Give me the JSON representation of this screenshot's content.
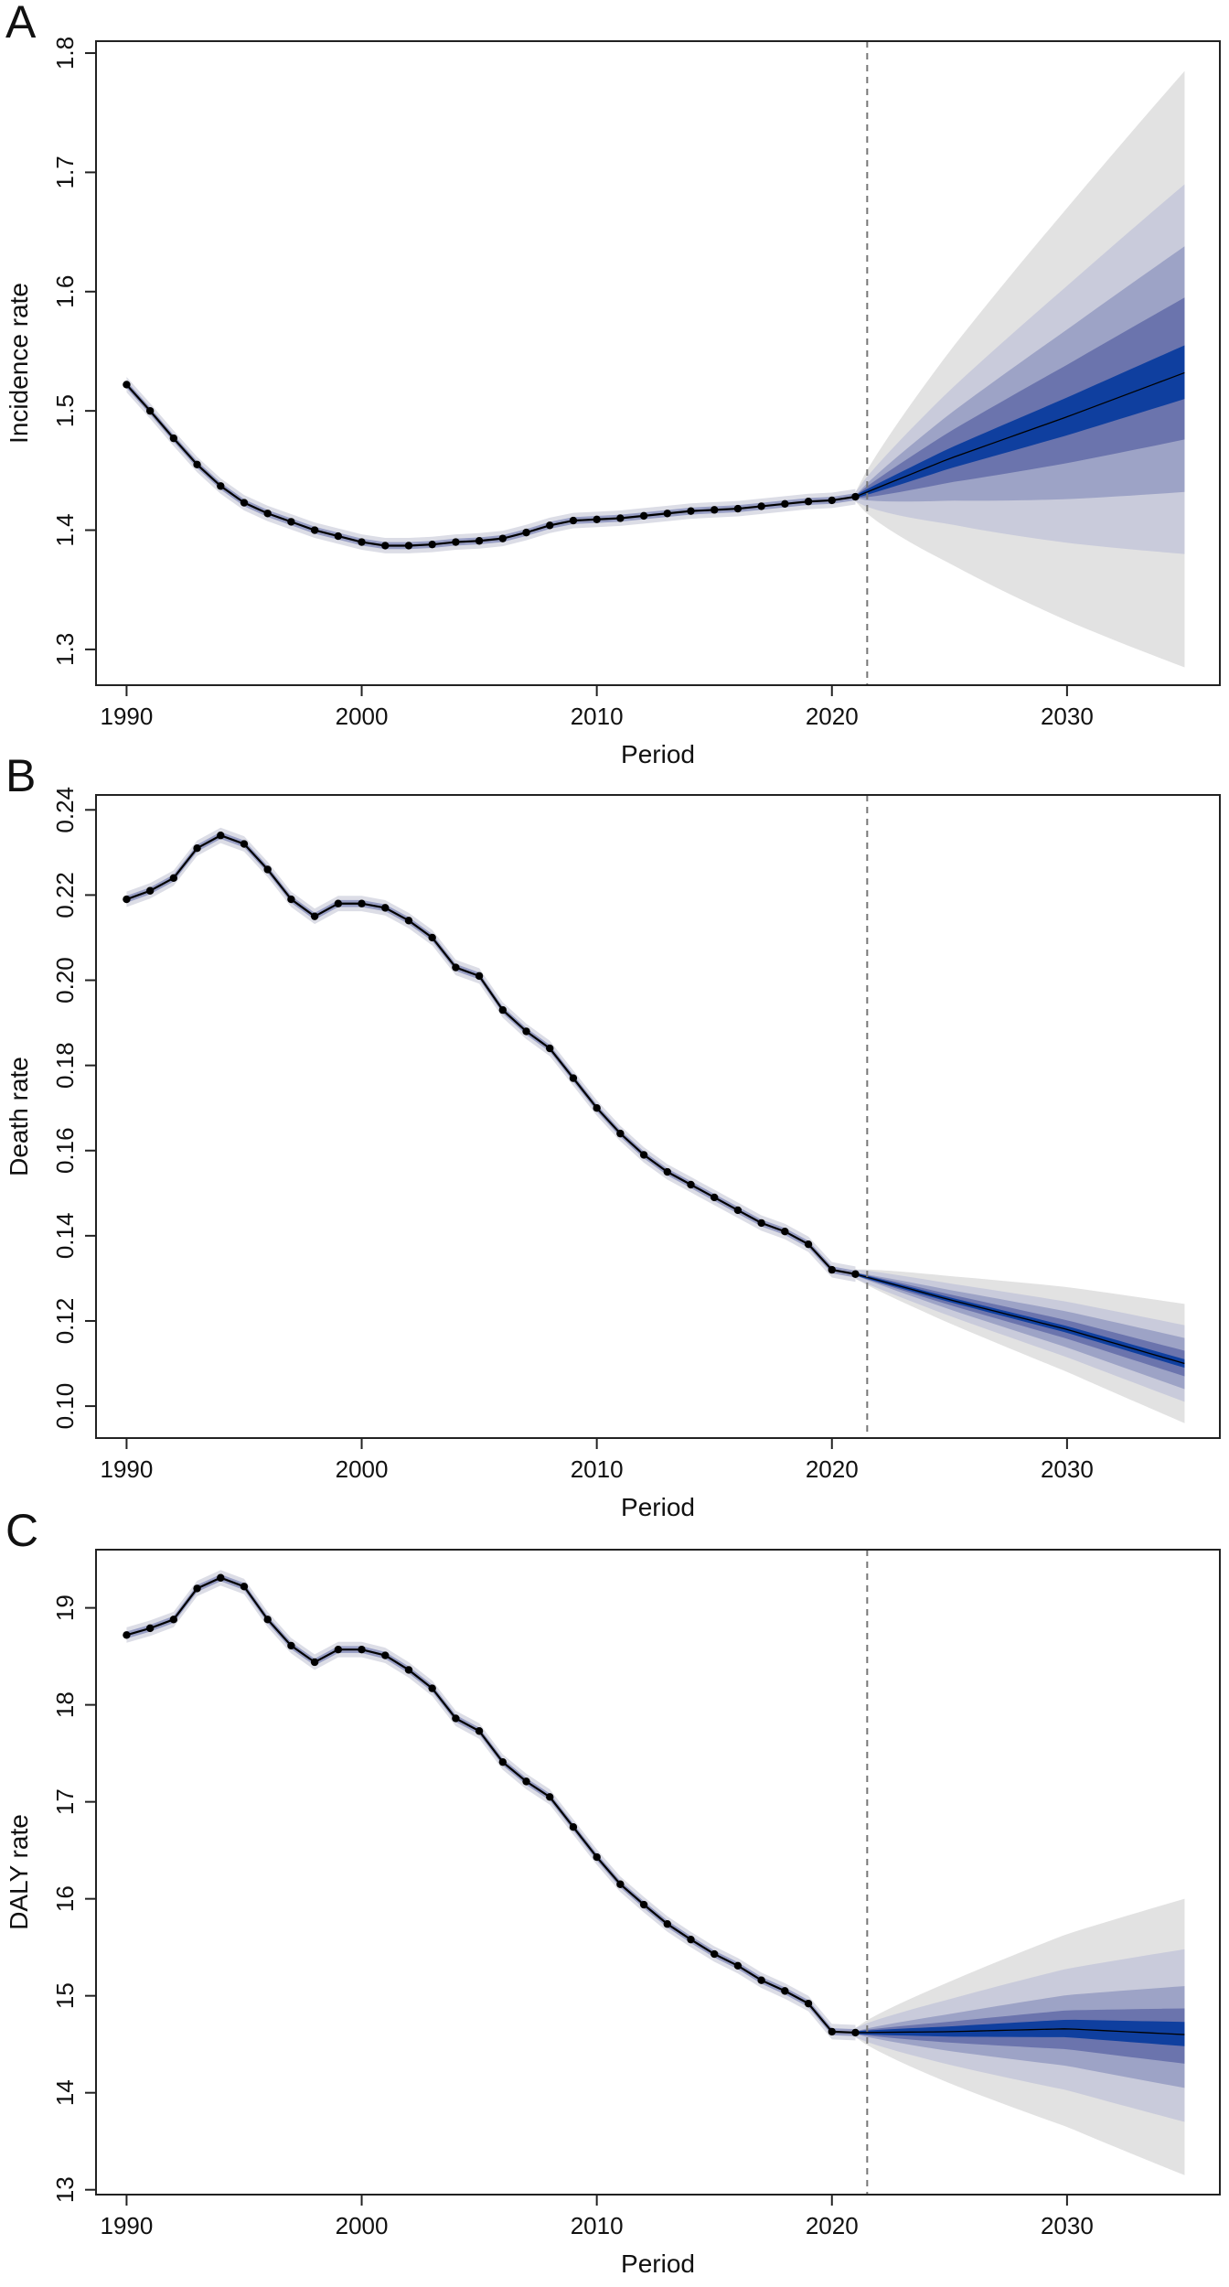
{
  "chart_data": [
    {
      "panel_label": "A",
      "type": "line",
      "xlabel": "Period",
      "ylabel": "Incidence rate",
      "xlim": [
        1988.7,
        2036.5
      ],
      "ylim": [
        1.27,
        1.81
      ],
      "xticks": [
        1990,
        2000,
        2010,
        2020,
        2030
      ],
      "yticks": [
        "1.3",
        "1.4",
        "1.5",
        "1.6",
        "1.7",
        "1.8"
      ],
      "forecast_start": 2021.5,
      "observed": {
        "x": [
          1990,
          1991,
          1992,
          1993,
          1994,
          1995,
          1996,
          1997,
          1998,
          1999,
          2000,
          2001,
          2002,
          2003,
          2004,
          2005,
          2006,
          2007,
          2008,
          2009,
          2010,
          2011,
          2012,
          2013,
          2014,
          2015,
          2016,
          2017,
          2018,
          2019,
          2020,
          2021
        ],
        "y": [
          1.522,
          1.5,
          1.477,
          1.455,
          1.437,
          1.423,
          1.414,
          1.407,
          1.4,
          1.395,
          1.39,
          1.387,
          1.387,
          1.388,
          1.39,
          1.391,
          1.393,
          1.398,
          1.404,
          1.408,
          1.409,
          1.41,
          1.412,
          1.414,
          1.416,
          1.417,
          1.418,
          1.42,
          1.422,
          1.424,
          1.425,
          1.428
        ]
      },
      "forecast_median": {
        "x": [
          2021,
          2025,
          2030,
          2035
        ],
        "y": [
          1.428,
          1.46,
          1.495,
          1.532
        ]
      },
      "forecast_bands_2035": [
        [
          1.285,
          1.785
        ],
        [
          1.38,
          1.69
        ],
        [
          1.432,
          1.638
        ],
        [
          1.476,
          1.595
        ],
        [
          1.51,
          1.555
        ]
      ]
    },
    {
      "panel_label": "B",
      "type": "line",
      "xlabel": "Period",
      "ylabel": "Death rate",
      "xlim": [
        1988.7,
        2036.5
      ],
      "ylim": [
        0.0925,
        0.2435
      ],
      "xticks": [
        1990,
        2000,
        2010,
        2020,
        2030
      ],
      "yticks": [
        "0.10",
        "0.12",
        "0.14",
        "0.16",
        "0.18",
        "0.20",
        "0.22",
        "0.24"
      ],
      "forecast_start": 2021.5,
      "observed": {
        "x": [
          1990,
          1991,
          1992,
          1993,
          1994,
          1995,
          1996,
          1997,
          1998,
          1999,
          2000,
          2001,
          2002,
          2003,
          2004,
          2005,
          2006,
          2007,
          2008,
          2009,
          2010,
          2011,
          2012,
          2013,
          2014,
          2015,
          2016,
          2017,
          2018,
          2019,
          2020,
          2021
        ],
        "y": [
          0.219,
          0.221,
          0.224,
          0.231,
          0.234,
          0.232,
          0.226,
          0.219,
          0.215,
          0.218,
          0.218,
          0.217,
          0.214,
          0.21,
          0.203,
          0.201,
          0.193,
          0.188,
          0.184,
          0.177,
          0.17,
          0.164,
          0.159,
          0.155,
          0.152,
          0.149,
          0.146,
          0.143,
          0.141,
          0.138,
          0.132,
          0.131
        ]
      },
      "forecast_median": {
        "x": [
          2021,
          2025,
          2030,
          2035
        ],
        "y": [
          0.131,
          0.125,
          0.118,
          0.11
        ]
      },
      "forecast_bands_2035": [
        [
          0.096,
          0.124
        ],
        [
          0.101,
          0.119
        ],
        [
          0.104,
          0.116
        ],
        [
          0.107,
          0.113
        ],
        [
          0.109,
          0.111
        ]
      ]
    },
    {
      "panel_label": "C",
      "type": "line",
      "xlabel": "Period",
      "ylabel": "DALY rate",
      "xlim": [
        1988.7,
        2036.5
      ],
      "ylim": [
        12.95,
        19.6
      ],
      "xticks": [
        1990,
        2000,
        2010,
        2020,
        2030
      ],
      "yticks": [
        "13",
        "14",
        "15",
        "16",
        "17",
        "18",
        "19"
      ],
      "forecast_start": 2021.5,
      "observed": {
        "x": [
          1990,
          1991,
          1992,
          1993,
          1994,
          1995,
          1996,
          1997,
          1998,
          1999,
          2000,
          2001,
          2002,
          2003,
          2004,
          2005,
          2006,
          2007,
          2008,
          2009,
          2010,
          2011,
          2012,
          2013,
          2014,
          2015,
          2016,
          2017,
          2018,
          2019,
          2020,
          2021
        ],
        "y": [
          18.72,
          18.79,
          18.88,
          19.2,
          19.31,
          19.22,
          18.88,
          18.61,
          18.44,
          18.57,
          18.57,
          18.51,
          18.36,
          18.17,
          17.86,
          17.73,
          17.41,
          17.21,
          17.05,
          16.74,
          16.43,
          16.15,
          15.94,
          15.74,
          15.58,
          15.43,
          15.31,
          15.16,
          15.05,
          14.92,
          14.63,
          14.62
        ]
      },
      "forecast_median": {
        "x": [
          2021,
          2025,
          2030,
          2035
        ],
        "y": [
          14.62,
          14.63,
          14.66,
          14.6
        ]
      },
      "forecast_bands_2035": [
        [
          13.15,
          16.0
        ],
        [
          13.7,
          15.48
        ],
        [
          14.05,
          15.1
        ],
        [
          14.3,
          14.87
        ],
        [
          14.48,
          14.73
        ]
      ]
    }
  ],
  "colors": {
    "band_outer": "#e2e2e2",
    "band_2": "#c9cbdb",
    "band_3": "#9da3c6",
    "band_4": "#6b74ad",
    "band_inner": "#0f3f9f",
    "history_band": "#dcdde6",
    "line": "#000000",
    "forecast_divider": "#777777"
  }
}
